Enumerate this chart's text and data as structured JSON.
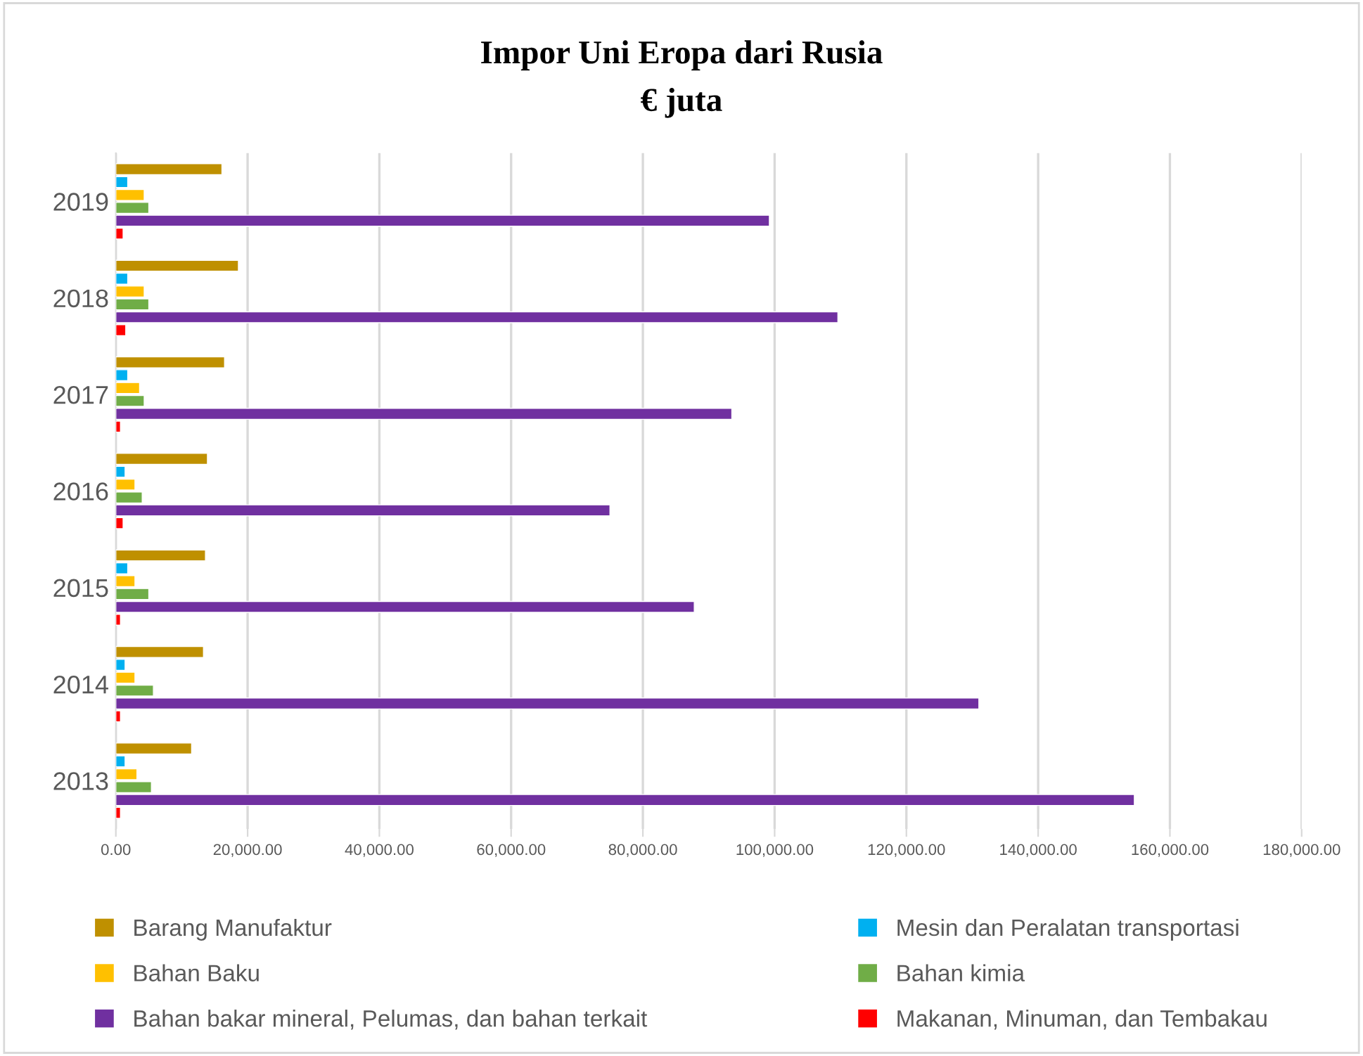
{
  "chart_data": {
    "type": "bar",
    "orientation": "horizontal",
    "title": "Impor Uni Eropa dari Rusia",
    "subtitle": "€ juta",
    "categories": [
      "2019",
      "2018",
      "2017",
      "2016",
      "2015",
      "2014",
      "2013"
    ],
    "series": [
      {
        "name": "Barang Manufaktur",
        "color": "#bf9000",
        "values": [
          16100,
          18600,
          16500,
          13900,
          13600,
          13300,
          11500
        ]
      },
      {
        "name": "Mesin dan Peralatan transportasi",
        "color": "#00b0f0",
        "values": [
          1800,
          1800,
          1800,
          1400,
          1800,
          1400,
          1400
        ]
      },
      {
        "name": "Bahan Baku",
        "color": "#ffc000",
        "values": [
          4300,
          4300,
          3600,
          2900,
          2900,
          2900,
          3200
        ]
      },
      {
        "name": "Bahan kimia",
        "color": "#70ad47",
        "values": [
          5000,
          5000,
          4300,
          4000,
          5000,
          5700,
          5400
        ]
      },
      {
        "name": "Bahan bakar mineral, Pelumas, dan bahan terkait",
        "color": "#7030a0",
        "values": [
          99200,
          109600,
          93500,
          75000,
          87800,
          131000,
          154600
        ]
      },
      {
        "name": "Makanan, Minuman, dan Tembakau",
        "color": "#ff0000",
        "values": [
          1100,
          1500,
          700,
          1100,
          700,
          700,
          700
        ]
      }
    ],
    "xlim": [
      0,
      180000
    ],
    "xticks": [
      {
        "value": 0,
        "label": "0.00"
      },
      {
        "value": 20000,
        "label": "20,000.00"
      },
      {
        "value": 40000,
        "label": "40,000.00"
      },
      {
        "value": 60000,
        "label": "60,000.00"
      },
      {
        "value": 80000,
        "label": "80,000.00"
      },
      {
        "value": 100000,
        "label": "100,000.00"
      },
      {
        "value": 120000,
        "label": "120,000.00"
      },
      {
        "value": 140000,
        "label": "140,000.00"
      },
      {
        "value": 160000,
        "label": "160,000.00"
      },
      {
        "value": 180000,
        "label": "180,000.00"
      }
    ],
    "grid": "x",
    "legend": "bottom"
  }
}
